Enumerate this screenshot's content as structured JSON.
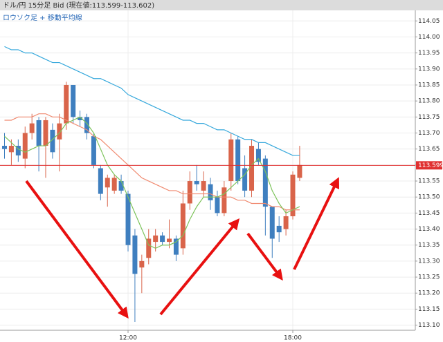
{
  "chart_data": {
    "type": "candlestick",
    "title": "ドル/円 15分足 Bid (現在値:113.599-113.602)",
    "subtitle": "ロウソク足 + 移動平均線",
    "categories": [
      null,
      null,
      null,
      null,
      null,
      null,
      null,
      null,
      null,
      null,
      null,
      null,
      null,
      null,
      null,
      null,
      null,
      null,
      "12:00",
      null,
      null,
      null,
      null,
      null,
      null,
      null,
      null,
      null,
      null,
      null,
      null,
      null,
      null,
      null,
      null,
      null,
      null,
      null,
      null,
      null,
      null,
      null,
      "18:00",
      null
    ],
    "open": [
      113.66,
      113.64,
      113.66,
      113.62,
      113.7,
      113.74,
      113.66,
      113.71,
      113.68,
      113.73,
      113.85,
      113.75,
      113.75,
      113.69,
      113.59,
      113.53,
      113.52,
      113.55,
      113.51,
      113.38,
      113.28,
      113.31,
      113.36,
      113.38,
      113.36,
      113.37,
      113.34,
      113.48,
      113.55,
      113.52,
      113.54,
      113.5,
      113.45,
      113.55,
      113.68,
      113.59,
      113.52,
      113.65,
      113.62,
      113.47,
      113.41,
      113.4,
      113.44,
      113.56
    ],
    "high": [
      113.7,
      113.68,
      113.68,
      113.72,
      113.76,
      113.75,
      113.75,
      113.73,
      113.76,
      113.86,
      113.85,
      113.77,
      113.76,
      113.7,
      113.6,
      113.57,
      113.57,
      113.57,
      113.52,
      113.4,
      113.32,
      113.4,
      113.4,
      113.39,
      113.43,
      113.38,
      113.52,
      113.58,
      113.6,
      113.58,
      113.56,
      113.52,
      113.55,
      113.7,
      113.69,
      113.63,
      113.68,
      113.67,
      113.63,
      113.47,
      113.44,
      113.46,
      113.58,
      113.66
    ],
    "low": [
      113.62,
      113.6,
      113.61,
      113.59,
      113.68,
      113.58,
      113.56,
      113.62,
      113.58,
      113.71,
      113.73,
      113.72,
      113.68,
      113.59,
      113.49,
      113.47,
      113.51,
      113.51,
      113.33,
      113.11,
      113.2,
      113.29,
      113.33,
      113.35,
      113.34,
      113.3,
      113.32,
      113.46,
      113.52,
      113.5,
      113.46,
      113.44,
      113.44,
      113.52,
      113.54,
      113.5,
      113.5,
      113.6,
      113.38,
      113.31,
      113.36,
      113.38,
      113.43,
      113.55
    ],
    "close": [
      113.65,
      113.66,
      113.63,
      113.7,
      113.73,
      113.66,
      113.74,
      113.64,
      113.73,
      113.85,
      113.75,
      113.74,
      113.7,
      113.6,
      113.51,
      113.56,
      113.56,
      113.52,
      113.35,
      113.26,
      113.3,
      113.37,
      113.38,
      113.36,
      113.37,
      113.32,
      113.48,
      113.55,
      113.54,
      113.55,
      113.49,
      113.45,
      113.53,
      113.68,
      113.55,
      113.52,
      113.66,
      113.61,
      113.47,
      113.37,
      113.39,
      113.44,
      113.57,
      113.6
    ],
    "up_color": "#d9644a",
    "down_color": "#3f7fbf",
    "series": [
      {
        "color": "#35a8dc",
        "values": [
          113.97,
          113.96,
          113.96,
          113.95,
          113.95,
          113.94,
          113.93,
          113.92,
          113.92,
          113.91,
          113.9,
          113.89,
          113.88,
          113.87,
          113.87,
          113.86,
          113.85,
          113.84,
          113.82,
          113.81,
          113.8,
          113.79,
          113.78,
          113.77,
          113.76,
          113.75,
          113.74,
          113.74,
          113.73,
          113.73,
          113.72,
          113.71,
          113.71,
          113.7,
          113.69,
          113.68,
          113.68,
          113.67,
          113.67,
          113.66,
          113.65,
          113.64,
          113.63,
          113.63
        ]
      },
      {
        "color": "#f08a70",
        "values": [
          113.74,
          113.74,
          113.75,
          113.75,
          113.75,
          113.76,
          113.76,
          113.75,
          113.75,
          113.74,
          113.73,
          113.72,
          113.71,
          113.69,
          113.68,
          113.66,
          113.64,
          113.62,
          113.6,
          113.58,
          113.56,
          113.55,
          113.54,
          113.53,
          113.52,
          113.52,
          113.51,
          113.51,
          113.51,
          113.51,
          113.51,
          113.5,
          113.5,
          113.5,
          113.49,
          113.49,
          113.48,
          113.48,
          113.48,
          113.47,
          113.47,
          113.46,
          113.46,
          113.46
        ]
      },
      {
        "color": "#7cc35a",
        "values": [
          113.69,
          113.67,
          113.65,
          113.64,
          113.65,
          113.66,
          113.66,
          113.68,
          113.7,
          113.73,
          113.74,
          113.75,
          113.73,
          113.7,
          113.65,
          113.6,
          113.57,
          113.55,
          113.5,
          113.45,
          113.4,
          113.35,
          113.34,
          113.35,
          113.35,
          113.36,
          113.38,
          113.43,
          113.47,
          113.5,
          113.5,
          113.5,
          113.51,
          113.53,
          113.55,
          113.57,
          113.6,
          113.62,
          113.58,
          113.52,
          113.48,
          113.45,
          113.46,
          113.47
        ]
      }
    ],
    "current_price": 113.599,
    "current_color": "#e03030",
    "ylim": [
      113.084,
      114.083
    ],
    "yticks": [
      {
        "value": 113.1,
        "label": "113.10"
      },
      113.15,
      {
        "value": 113.2,
        "label": "113.20"
      },
      113.25,
      {
        "value": 113.3,
        "label": "113.30"
      },
      113.35,
      {
        "value": 113.4,
        "label": "113.40"
      },
      113.45,
      {
        "value": 113.5,
        "label": "113.50"
      },
      113.55,
      {
        "value": 113.6,
        "label": "113.60"
      },
      113.65,
      {
        "value": 113.7,
        "label": "113.70"
      },
      113.75,
      {
        "value": 113.8,
        "label": "113.80"
      },
      113.85,
      {
        "value": 113.9,
        "label": "113.90"
      },
      113.95,
      {
        "value": 114,
        "label": "114.00"
      },
      114.05
    ],
    "grid": true
  }
}
